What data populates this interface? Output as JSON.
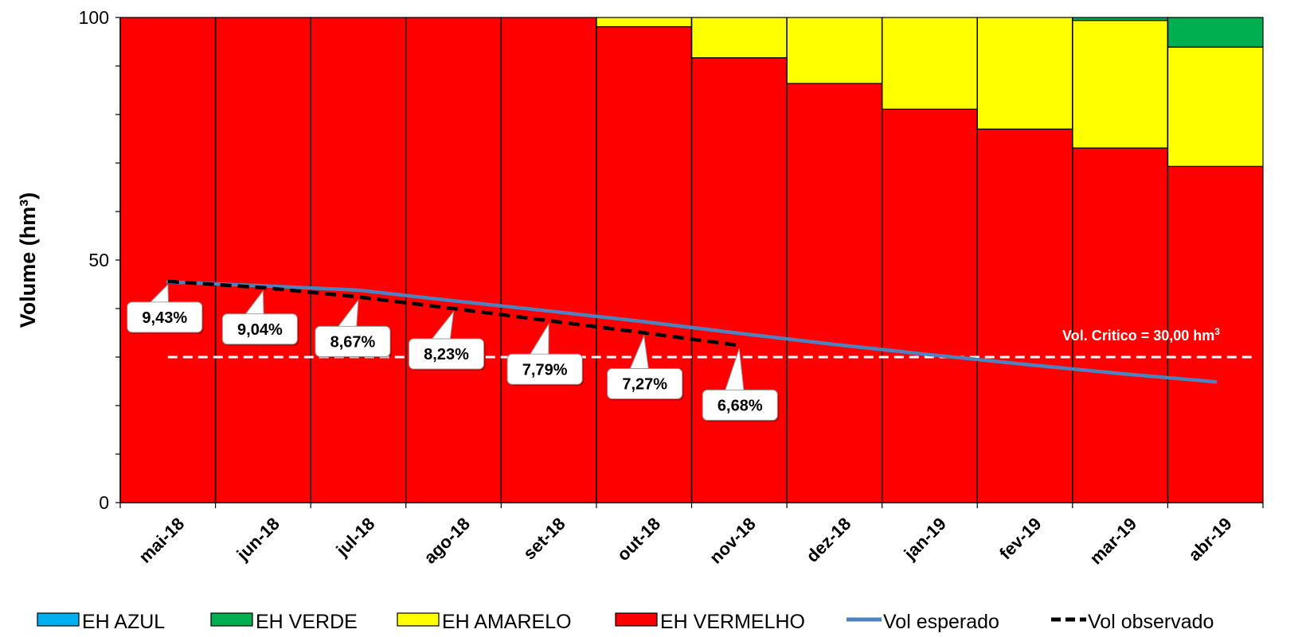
{
  "chart_data": {
    "type": "bar",
    "stacked": true,
    "ylabel": "Volume (hm³)",
    "xlabel": "",
    "ylim": [
      0,
      100
    ],
    "yticks": [
      0,
      50,
      100
    ],
    "categories": [
      "mai-18",
      "jun-18",
      "jul-18",
      "ago-18",
      "set-18",
      "out-18",
      "nov-18",
      "dez-18",
      "jan-19",
      "fev-19",
      "mar-19",
      "abr-19"
    ],
    "series": [
      {
        "name": "EH AZUL",
        "kind": "bar",
        "color": "#00B0F0",
        "values": [
          0,
          0,
          0,
          0,
          0,
          0,
          0,
          0,
          0,
          0,
          0,
          0
        ]
      },
      {
        "name": "EH VERDE",
        "kind": "bar",
        "color": "#00B050",
        "values": [
          0,
          0,
          0,
          0,
          0,
          0,
          0,
          0,
          0,
          0,
          0.6,
          6.1
        ]
      },
      {
        "name": "EH AMARELO",
        "kind": "bar",
        "color": "#FFFF00",
        "values": [
          0,
          0,
          0,
          0,
          0,
          1.9,
          8.3,
          13.6,
          18.9,
          23.0,
          26.3,
          24.6
        ]
      },
      {
        "name": "EH VERMELHO",
        "kind": "bar",
        "color": "#FF0000",
        "values": [
          100,
          100,
          100,
          100,
          100,
          98.1,
          91.7,
          86.4,
          81.1,
          77.0,
          73.1,
          69.3
        ]
      },
      {
        "name": "Vol esperado",
        "kind": "line",
        "color": "#4F81BD",
        "values": [
          45.5,
          44.7,
          43.8,
          41.6,
          39.5,
          37.3,
          34.9,
          32.6,
          30.5,
          28.5,
          26.6,
          24.9
        ]
      },
      {
        "name": "Vol observado",
        "kind": "dashed-line",
        "color": "#000000",
        "values": [
          45.6,
          44.3,
          42.4,
          40.0,
          37.5,
          35.0,
          32.4,
          null,
          null,
          null,
          null,
          null
        ]
      }
    ],
    "annotations": [
      {
        "category": "mai-18",
        "text": "9,43%"
      },
      {
        "category": "jun-18",
        "text": "9,04%"
      },
      {
        "category": "jul-18",
        "text": "8,67%"
      },
      {
        "category": "ago-18",
        "text": "8,23%"
      },
      {
        "category": "set-18",
        "text": "7,79%"
      },
      {
        "category": "out-18",
        "text": "7,27%"
      },
      {
        "category": "nov-18",
        "text": "6,68%"
      }
    ],
    "critical": {
      "value": 30,
      "label": "Vol. Critico = 30,00 hm",
      "sup": "3"
    },
    "grid": false,
    "legend_position": "bottom"
  }
}
